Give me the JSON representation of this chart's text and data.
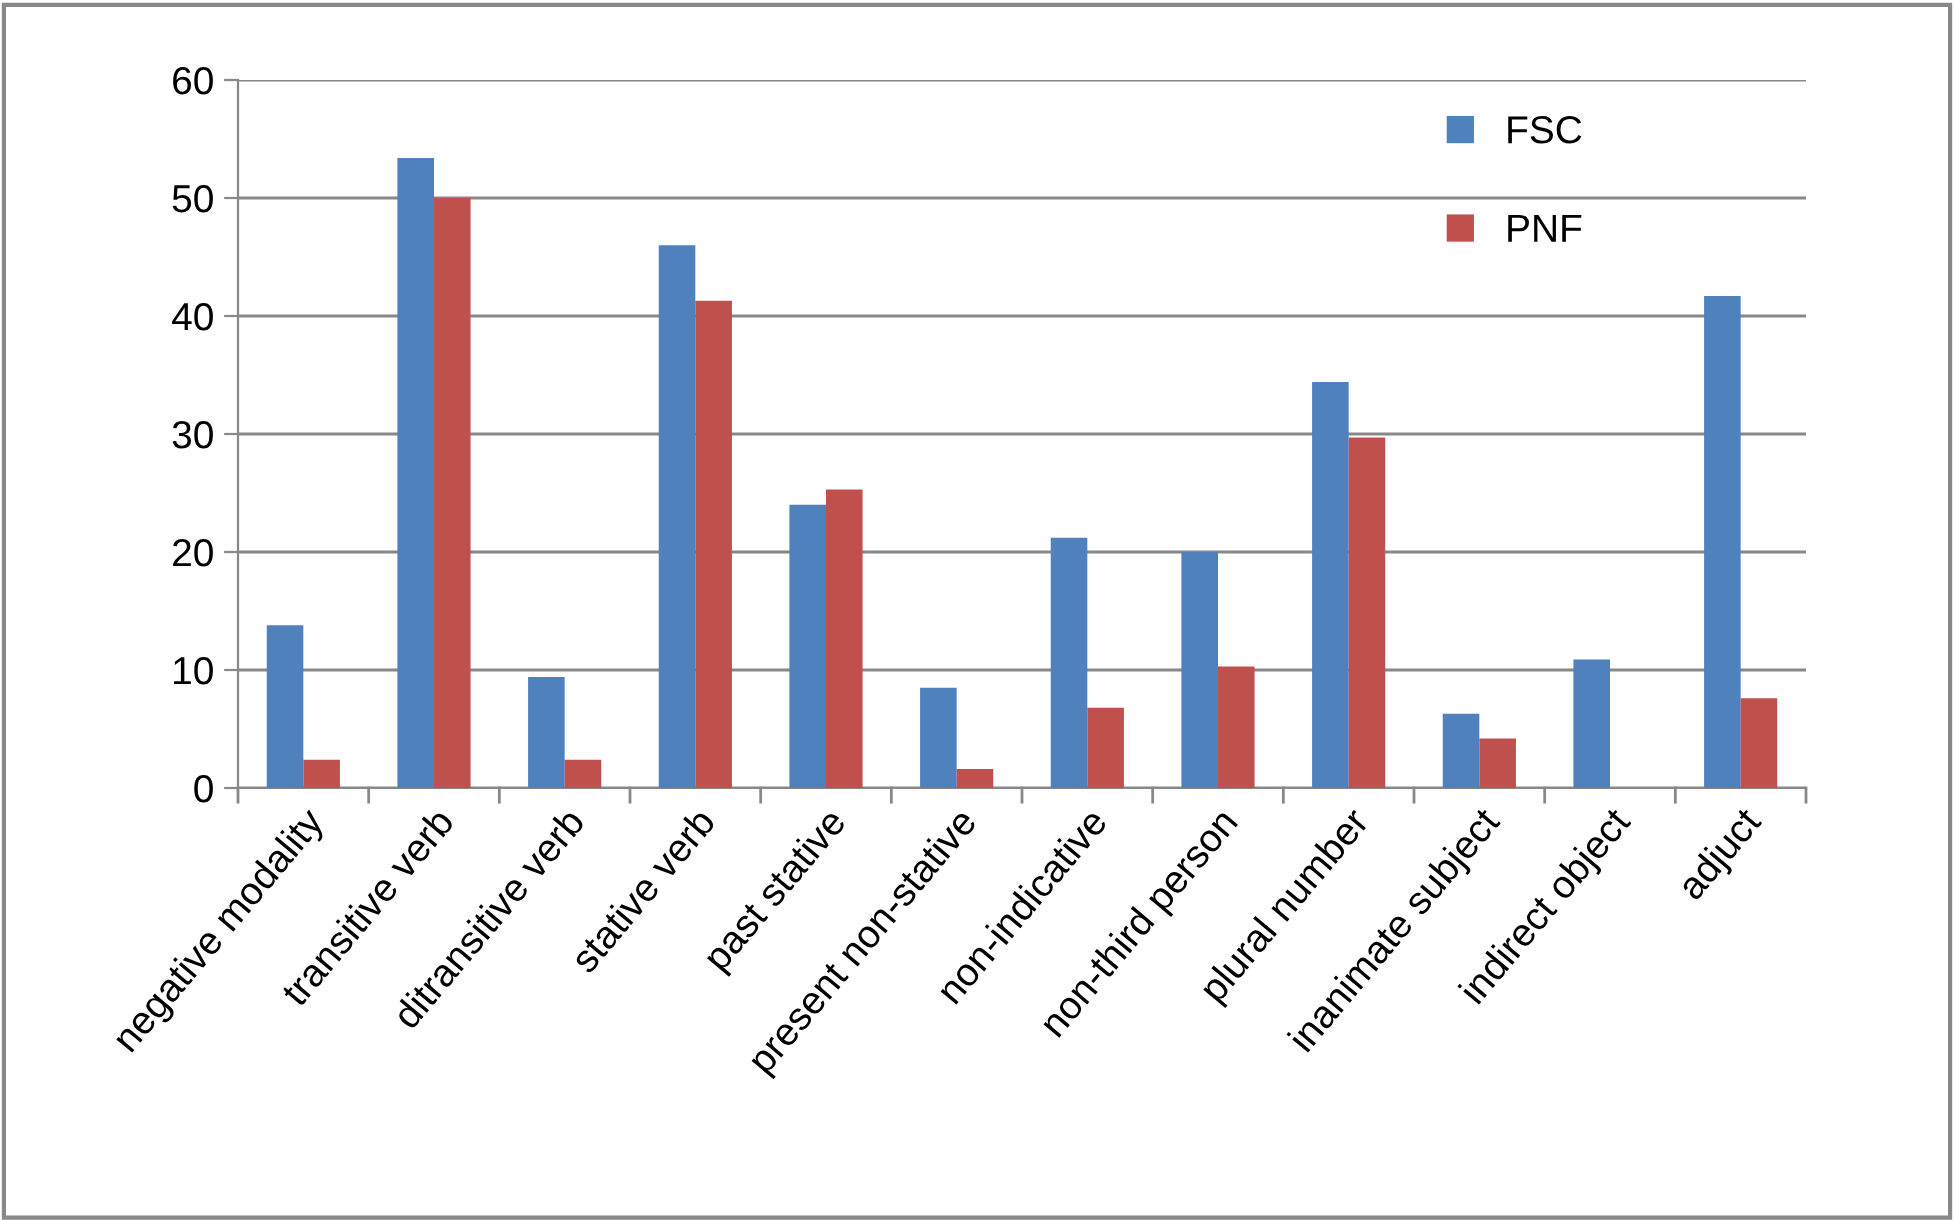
{
  "chart_data": {
    "type": "bar",
    "categories": [
      "negative modality",
      "transitive verb",
      "ditransitive verb",
      "stative verb",
      "past stative",
      "present non-stative",
      "non-indicative",
      "non-third person",
      "plural number",
      "inanimate subject",
      "indirect object",
      "adjuct"
    ],
    "series": [
      {
        "name": "FSC",
        "color": "#4f81bd",
        "values": [
          13.8,
          53.4,
          9.4,
          46.0,
          24.0,
          8.5,
          21.2,
          20.0,
          34.4,
          6.3,
          10.9,
          41.7
        ]
      },
      {
        "name": "PNF",
        "color": "#c0504d",
        "values": [
          2.4,
          50.0,
          2.4,
          41.3,
          25.3,
          1.6,
          6.8,
          10.3,
          29.7,
          4.2,
          0,
          7.6
        ]
      }
    ],
    "ylim": [
      0,
      60
    ],
    "yticks": [
      0,
      10,
      20,
      30,
      40,
      50,
      60
    ],
    "grid": "y",
    "legend": "top right"
  }
}
